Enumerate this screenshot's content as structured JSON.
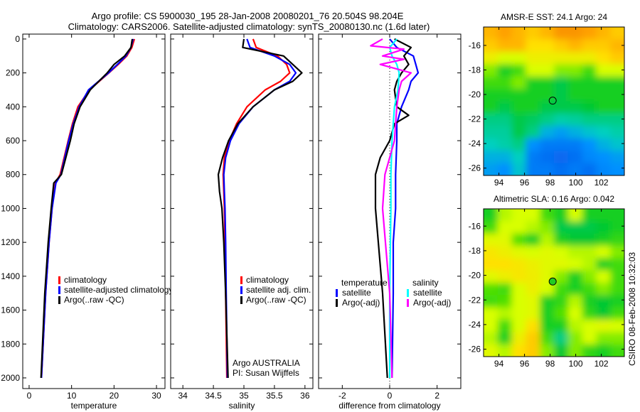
{
  "title_line1": "Argo profile: CS 5900030_195 28-Jan-2008 20080201_76 20.504S 98.204E",
  "title_line2": "Climatology: CARS2006. Satellite-adjusted climatology: synTS_20080130.nc (1.6d later)",
  "credit": "CSIRO 08-Feb-2008 10:32:03",
  "colors": {
    "climatology": "#ff0000",
    "satellite": "#0000ff",
    "argo": "#000000",
    "sal_satellite": "#00ffff",
    "sal_argo": "#ff00ff"
  },
  "chart_data": [
    {
      "type": "line",
      "xlabel": "temperature",
      "ylabel": "",
      "xlim": [
        -1.5,
        32
      ],
      "ylim": [
        2063,
        -29
      ],
      "xticks": [
        "0",
        "10",
        "20",
        "30"
      ],
      "xtick_values": [
        0,
        10,
        20,
        30
      ],
      "yticks": [
        "0",
        "200",
        "400",
        "600",
        "800",
        "1000",
        "1200",
        "1400",
        "1600",
        "1800",
        "2000"
      ],
      "ytick_values": [
        0,
        200,
        400,
        600,
        800,
        1000,
        1200,
        1400,
        1600,
        1800,
        2000
      ],
      "legend": [
        "climatology",
        "satellite-adjusted climatology",
        "Argo(..raw -QC)"
      ],
      "legend_placement": "lower-center",
      "pressure": [
        0,
        50,
        100,
        150,
        200,
        300,
        400,
        500,
        600,
        800,
        850,
        1000,
        1200,
        1500,
        2000
      ],
      "series": [
        {
          "name": "climatology",
          "color": "#ff0000",
          "values": [
            24.8,
            24.2,
            23.0,
            21.0,
            18.8,
            14.2,
            11.5,
            10.2,
            9.2,
            7.3,
            6.2,
            5.4,
            4.7,
            3.9,
            2.9
          ]
        },
        {
          "name": "satellite-adjusted climatology",
          "color": "#0000ff",
          "values": [
            24.5,
            24.0,
            22.8,
            20.8,
            18.7,
            14.0,
            11.8,
            10.4,
            9.3,
            7.5,
            6.3,
            5.4,
            4.7,
            3.9,
            2.9
          ]
        },
        {
          "name": "Argo(..raw -QC)",
          "color": "#000000",
          "values": [
            24.3,
            24.0,
            22.5,
            20.0,
            18.4,
            14.4,
            12.0,
            10.6,
            9.7,
            7.6,
            5.8,
            5.2,
            4.5,
            3.7,
            2.8
          ]
        }
      ]
    },
    {
      "type": "line",
      "xlabel": "salinity",
      "xlim": [
        33.8,
        36.13
      ],
      "ylim": [
        2063,
        -29
      ],
      "xticks": [
        "34",
        "34.5",
        "35",
        "35.5",
        "36"
      ],
      "xtick_values": [
        34,
        34.5,
        35,
        35.5,
        36
      ],
      "legend": [
        "climatology",
        "satellite adj. clim.",
        "Argo(..raw -QC)"
      ],
      "legend_placement": "lower-right",
      "annotation": [
        "Argo AUSTRALIA",
        "PI: Susan Wijffels"
      ],
      "pressure": [
        0,
        50,
        100,
        150,
        200,
        250,
        300,
        400,
        500,
        600,
        700,
        800,
        900,
        1000,
        1200,
        1500,
        2000
      ],
      "series": [
        {
          "name": "climatology",
          "color": "#ff0000",
          "values": [
            35.15,
            35.2,
            35.55,
            35.7,
            35.75,
            35.6,
            35.35,
            35.05,
            34.88,
            34.76,
            34.68,
            34.66,
            34.67,
            34.68,
            34.69,
            34.7,
            34.72
          ]
        },
        {
          "name": "satellite adj. clim.",
          "color": "#0000ff",
          "values": [
            35.05,
            35.1,
            35.5,
            35.75,
            35.85,
            35.75,
            35.5,
            35.15,
            34.92,
            34.78,
            34.7,
            34.67,
            34.68,
            34.69,
            34.7,
            34.71,
            34.73
          ]
        },
        {
          "name": "Argo(..raw -QC)",
          "color": "#000000",
          "values": [
            35.0,
            34.98,
            35.65,
            35.8,
            35.95,
            35.8,
            35.5,
            35.15,
            34.9,
            34.75,
            34.65,
            34.58,
            34.6,
            34.64,
            34.67,
            34.7,
            34.74
          ]
        }
      ]
    },
    {
      "type": "line",
      "xlabel": "difference from climatology",
      "xlim": [
        -3,
        3
      ],
      "ylim": [
        2063,
        -29
      ],
      "xticks": [
        "-2",
        "0",
        "2"
      ],
      "xtick_values": [
        -2,
        0,
        2
      ],
      "legend_groups": [
        {
          "title": "temperature",
          "items": [
            "satellite",
            "Argo(-adj)"
          ]
        },
        {
          "title": "salinity",
          "items": [
            "satellite",
            "Argo(-adj)"
          ]
        }
      ],
      "legend_placement": "lower-center",
      "series": [
        {
          "name": "temperature satellite",
          "color": "#0000ff",
          "pressure": [
            0,
            50,
            100,
            150,
            200,
            250,
            300,
            400,
            500,
            600,
            800,
            1000,
            1200,
            1500,
            2000
          ],
          "values": [
            0.0,
            0.3,
            1.0,
            1.1,
            1.2,
            0.9,
            0.8,
            0.5,
            0.3,
            0.3,
            0.25,
            0.25,
            0.15,
            0.15,
            0.1
          ]
        },
        {
          "name": "temperature Argo(-adj)",
          "color": "#000000",
          "pressure": [
            0,
            50,
            100,
            150,
            200,
            250,
            300,
            400,
            450,
            500,
            600,
            700,
            800,
            1000,
            1500,
            2000
          ],
          "values": [
            0.2,
            0.9,
            0.6,
            0.8,
            0.5,
            0.3,
            0.2,
            0.3,
            0.8,
            0.2,
            0.0,
            -0.4,
            -0.6,
            -0.6,
            -0.3,
            -0.1
          ]
        },
        {
          "name": "salinity satellite",
          "color": "#00ffff",
          "pressure": [
            0,
            50,
            100,
            150,
            200,
            300,
            400,
            600,
            800,
            1000,
            1500,
            2000
          ],
          "values": [
            0.3,
            0.0,
            0.1,
            0.3,
            0.4,
            0.35,
            0.2,
            0.1,
            0.05,
            0.05,
            0.0,
            0.0
          ]
        },
        {
          "name": "salinity Argo(-adj)",
          "color": "#ff00ff",
          "pressure": [
            0,
            40,
            60,
            100,
            120,
            150,
            200,
            250,
            300,
            400,
            600,
            800,
            1000,
            1500,
            2000
          ],
          "values": [
            -0.3,
            -0.8,
            0.6,
            -0.3,
            0.6,
            -0.4,
            0.9,
            0.5,
            0.4,
            0.3,
            0.2,
            -0.2,
            -0.3,
            0.0,
            0.1
          ]
        }
      ]
    },
    {
      "type": "heatmap",
      "title": "AMSR-E SST: 24.1 Argo: 24",
      "xlim": [
        92.8,
        103.8
      ],
      "ylim": [
        -14.5,
        -26.6
      ],
      "xticks": [
        "94",
        "96",
        "98",
        "100",
        "102"
      ],
      "xtick_values": [
        94,
        96,
        98,
        100,
        102
      ],
      "yticks": [
        "-16",
        "-18",
        "-20",
        "-22",
        "-24",
        "-26"
      ],
      "ytick_values": [
        -16,
        -18,
        -20,
        -22,
        -24,
        -26
      ],
      "marker": {
        "lon": 98.2,
        "lat": -20.5,
        "filled": false
      },
      "grid_relative": [
        [
          0.8,
          0.85,
          0.8,
          0.75,
          0.8,
          0.9,
          0.9,
          0.85,
          0.8,
          0.75
        ],
        [
          0.75,
          0.8,
          0.8,
          0.7,
          0.7,
          0.75,
          0.8,
          0.75,
          0.75,
          0.8
        ],
        [
          0.65,
          0.6,
          0.6,
          0.65,
          0.65,
          0.65,
          0.65,
          0.65,
          0.7,
          0.75
        ],
        [
          0.55,
          0.45,
          0.5,
          0.6,
          0.6,
          0.55,
          0.55,
          0.5,
          0.6,
          0.6
        ],
        [
          0.5,
          0.5,
          0.55,
          0.45,
          0.45,
          0.4,
          0.45,
          0.45,
          0.45,
          0.45
        ],
        [
          0.45,
          0.45,
          0.45,
          0.45,
          0.45,
          0.4,
          0.45,
          0.45,
          0.45,
          0.45
        ],
        [
          0.45,
          0.4,
          0.45,
          0.45,
          0.4,
          0.4,
          0.4,
          0.42,
          0.45,
          0.45
        ],
        [
          0.35,
          0.35,
          0.4,
          0.38,
          0.35,
          0.32,
          0.33,
          0.35,
          0.35,
          0.35
        ],
        [
          0.33,
          0.33,
          0.4,
          0.35,
          0.25,
          0.22,
          0.25,
          0.28,
          0.3,
          0.32
        ],
        [
          0.3,
          0.32,
          0.35,
          0.2,
          0.15,
          0.15,
          0.15,
          0.2,
          0.25,
          0.28
        ],
        [
          0.25,
          0.25,
          0.3,
          0.15,
          0.12,
          0.1,
          0.12,
          0.18,
          0.2,
          0.22
        ],
        [
          0.22,
          0.2,
          0.28,
          0.15,
          0.15,
          0.12,
          0.15,
          0.12,
          0.18,
          0.2
        ]
      ]
    },
    {
      "type": "heatmap",
      "title": "Altimetric SLA: 0.16 Argo: 0.042",
      "xlim": [
        92.8,
        103.8
      ],
      "ylim": [
        -14.6,
        -26.6
      ],
      "xticks": [
        "94",
        "96",
        "98",
        "100",
        "102"
      ],
      "xtick_values": [
        94,
        96,
        98,
        100,
        102
      ],
      "yticks": [
        "-16",
        "-18",
        "-20",
        "-22",
        "-24",
        "-26"
      ],
      "ytick_values": [
        -16,
        -18,
        -20,
        -22,
        -24,
        -26
      ],
      "marker": {
        "lon": 98.2,
        "lat": -20.5,
        "filled": true
      },
      "grid_relative": [
        [
          0.45,
          0.58,
          0.6,
          0.6,
          0.5,
          0.45,
          0.6,
          0.45,
          0.45,
          0.45
        ],
        [
          0.5,
          0.6,
          0.6,
          0.58,
          0.55,
          0.4,
          0.4,
          0.4,
          0.42,
          0.45
        ],
        [
          0.62,
          0.62,
          0.52,
          0.45,
          0.58,
          0.45,
          0.42,
          0.42,
          0.45,
          0.48
        ],
        [
          0.68,
          0.65,
          0.62,
          0.6,
          0.62,
          0.6,
          0.58,
          0.58,
          0.6,
          0.55
        ],
        [
          0.7,
          0.7,
          0.68,
          0.65,
          0.62,
          0.62,
          0.6,
          0.58,
          0.45,
          0.5
        ],
        [
          0.62,
          0.65,
          0.68,
          0.66,
          0.62,
          0.55,
          0.45,
          0.55,
          0.6,
          0.5
        ],
        [
          0.52,
          0.5,
          0.6,
          0.65,
          0.6,
          0.5,
          0.45,
          0.5,
          0.55,
          0.5
        ],
        [
          0.5,
          0.52,
          0.6,
          0.62,
          0.45,
          0.48,
          0.58,
          0.45,
          0.42,
          0.45
        ],
        [
          0.6,
          0.58,
          0.6,
          0.62,
          0.45,
          0.52,
          0.6,
          0.48,
          0.42,
          0.5
        ],
        [
          0.6,
          0.5,
          0.6,
          0.7,
          0.45,
          0.45,
          0.58,
          0.6,
          0.62,
          0.6
        ],
        [
          0.58,
          0.45,
          0.65,
          0.75,
          0.5,
          0.35,
          0.55,
          0.6,
          0.55,
          0.55
        ],
        [
          0.62,
          0.58,
          0.7,
          0.75,
          0.55,
          0.42,
          0.55,
          0.48,
          0.45,
          0.5
        ]
      ]
    }
  ]
}
